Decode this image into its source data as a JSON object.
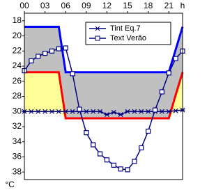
{
  "chart_data": {
    "type": "line",
    "x_label": "h",
    "y_label": "°C",
    "x": [
      0,
      1,
      2,
      3,
      4,
      5,
      6,
      7,
      8,
      9,
      10,
      11,
      12,
      13,
      14,
      15,
      16,
      17,
      18,
      19,
      20,
      21,
      22,
      23
    ],
    "xlim": [
      0,
      23
    ],
    "xticks": [
      {
        "value": 0,
        "label": "00"
      },
      {
        "value": 3,
        "label": "03"
      },
      {
        "value": 6,
        "label": "06"
      },
      {
        "value": 9,
        "label": "09"
      },
      12,
      15,
      18,
      21
    ],
    "ylim": [
      17,
      39
    ],
    "yticks": [
      18,
      20,
      22,
      24,
      26,
      28,
      30,
      32,
      34,
      36,
      38
    ],
    "flipped_vertically": true,
    "fill_colors": [
      "#c0c0c0",
      "#ffff99"
    ],
    "limits": [
      {
        "color": "#0000ff",
        "values": [
          18.8,
          18.8,
          18.8,
          18.8,
          18.8,
          18.8,
          24.8,
          24.8,
          24.8,
          24.8,
          24.8,
          24.8,
          24.8,
          24.8,
          24.8,
          24.8,
          24.8,
          24.8,
          24.8,
          24.8,
          24.8,
          24.8,
          21.8,
          18.8
        ]
      },
      {
        "color": "#ff0000",
        "values": [
          24.8,
          24.8,
          24.8,
          24.8,
          24.8,
          24.8,
          30.9,
          30.9,
          30.9,
          30.9,
          30.9,
          30.9,
          30.9,
          30.9,
          30.9,
          30.9,
          30.9,
          30.9,
          30.9,
          30.9,
          30.9,
          30.9,
          27.8,
          24.8
        ]
      }
    ],
    "series": [
      {
        "name": "Tint Eq.7",
        "color": "#000080",
        "marker": "x",
        "values": [
          30,
          30,
          30,
          30,
          30,
          30,
          30,
          30,
          30,
          30,
          30,
          30,
          30.4,
          30.1,
          30.4,
          30,
          30,
          30,
          30,
          30,
          30,
          30,
          29.9,
          29.8
        ]
      },
      {
        "name": "Text Verão",
        "color": "#000080",
        "marker": "square",
        "values": [
          24.6,
          23.3,
          22.7,
          22.3,
          22.0,
          21.7,
          21.6,
          25.0,
          29.7,
          32.8,
          34.4,
          35.6,
          36.4,
          37.1,
          37.6,
          37.7,
          36.6,
          34.8,
          32.6,
          29.8,
          27.4,
          24.9,
          23.0,
          22.0
        ]
      }
    ],
    "legend": "upper-right"
  }
}
